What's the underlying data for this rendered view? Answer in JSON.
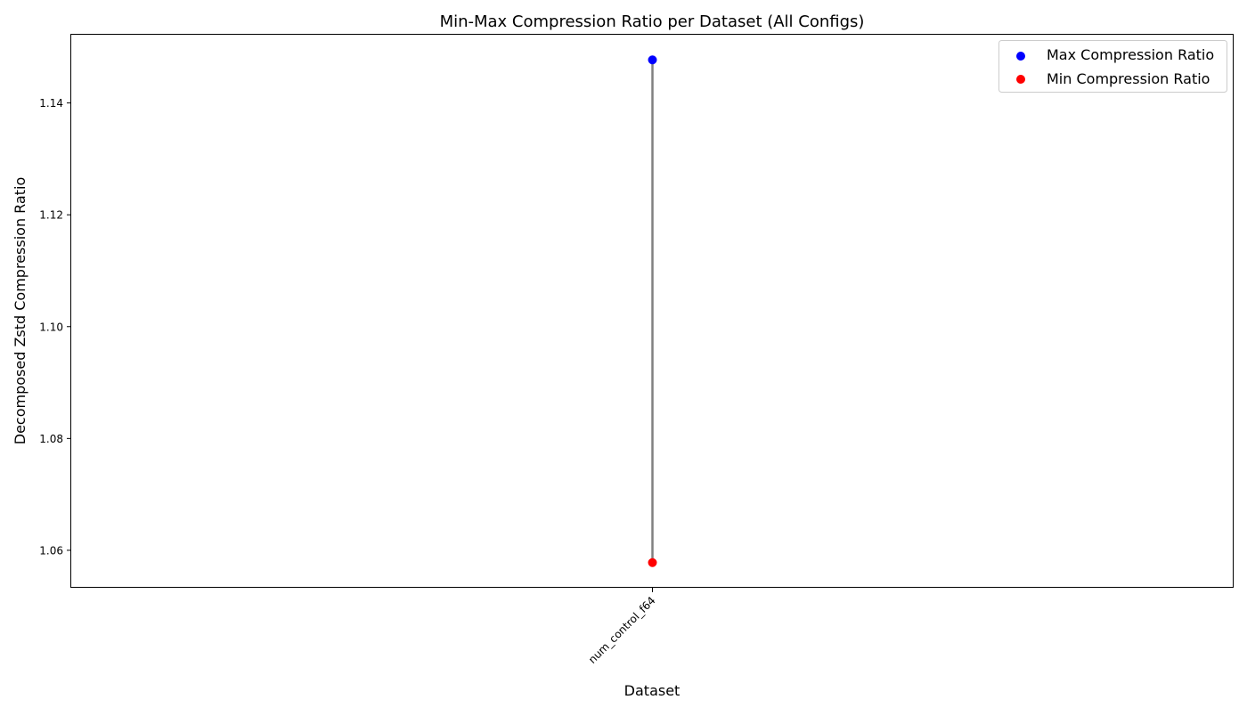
{
  "chart_data": {
    "type": "scatter",
    "title": "Min-Max Compression Ratio per Dataset (All Configs)",
    "xlabel": "Dataset",
    "ylabel": "Decomposed Zstd Compression Ratio",
    "categories": [
      "num_control_f64"
    ],
    "series": [
      {
        "name": "Max Compression Ratio",
        "color": "#0000ff",
        "values": [
          1.1477
        ]
      },
      {
        "name": "Min Compression Ratio",
        "color": "#ff0000",
        "values": [
          1.0578
        ]
      }
    ],
    "range_line_color": "#808080",
    "ylim": [
      1.0533,
      1.1522
    ],
    "y_ticks": [
      "1.06",
      "1.08",
      "1.10",
      "1.12",
      "1.14"
    ],
    "grid": false,
    "legend_position": "top-right",
    "x_tick_rotation": "45°"
  }
}
